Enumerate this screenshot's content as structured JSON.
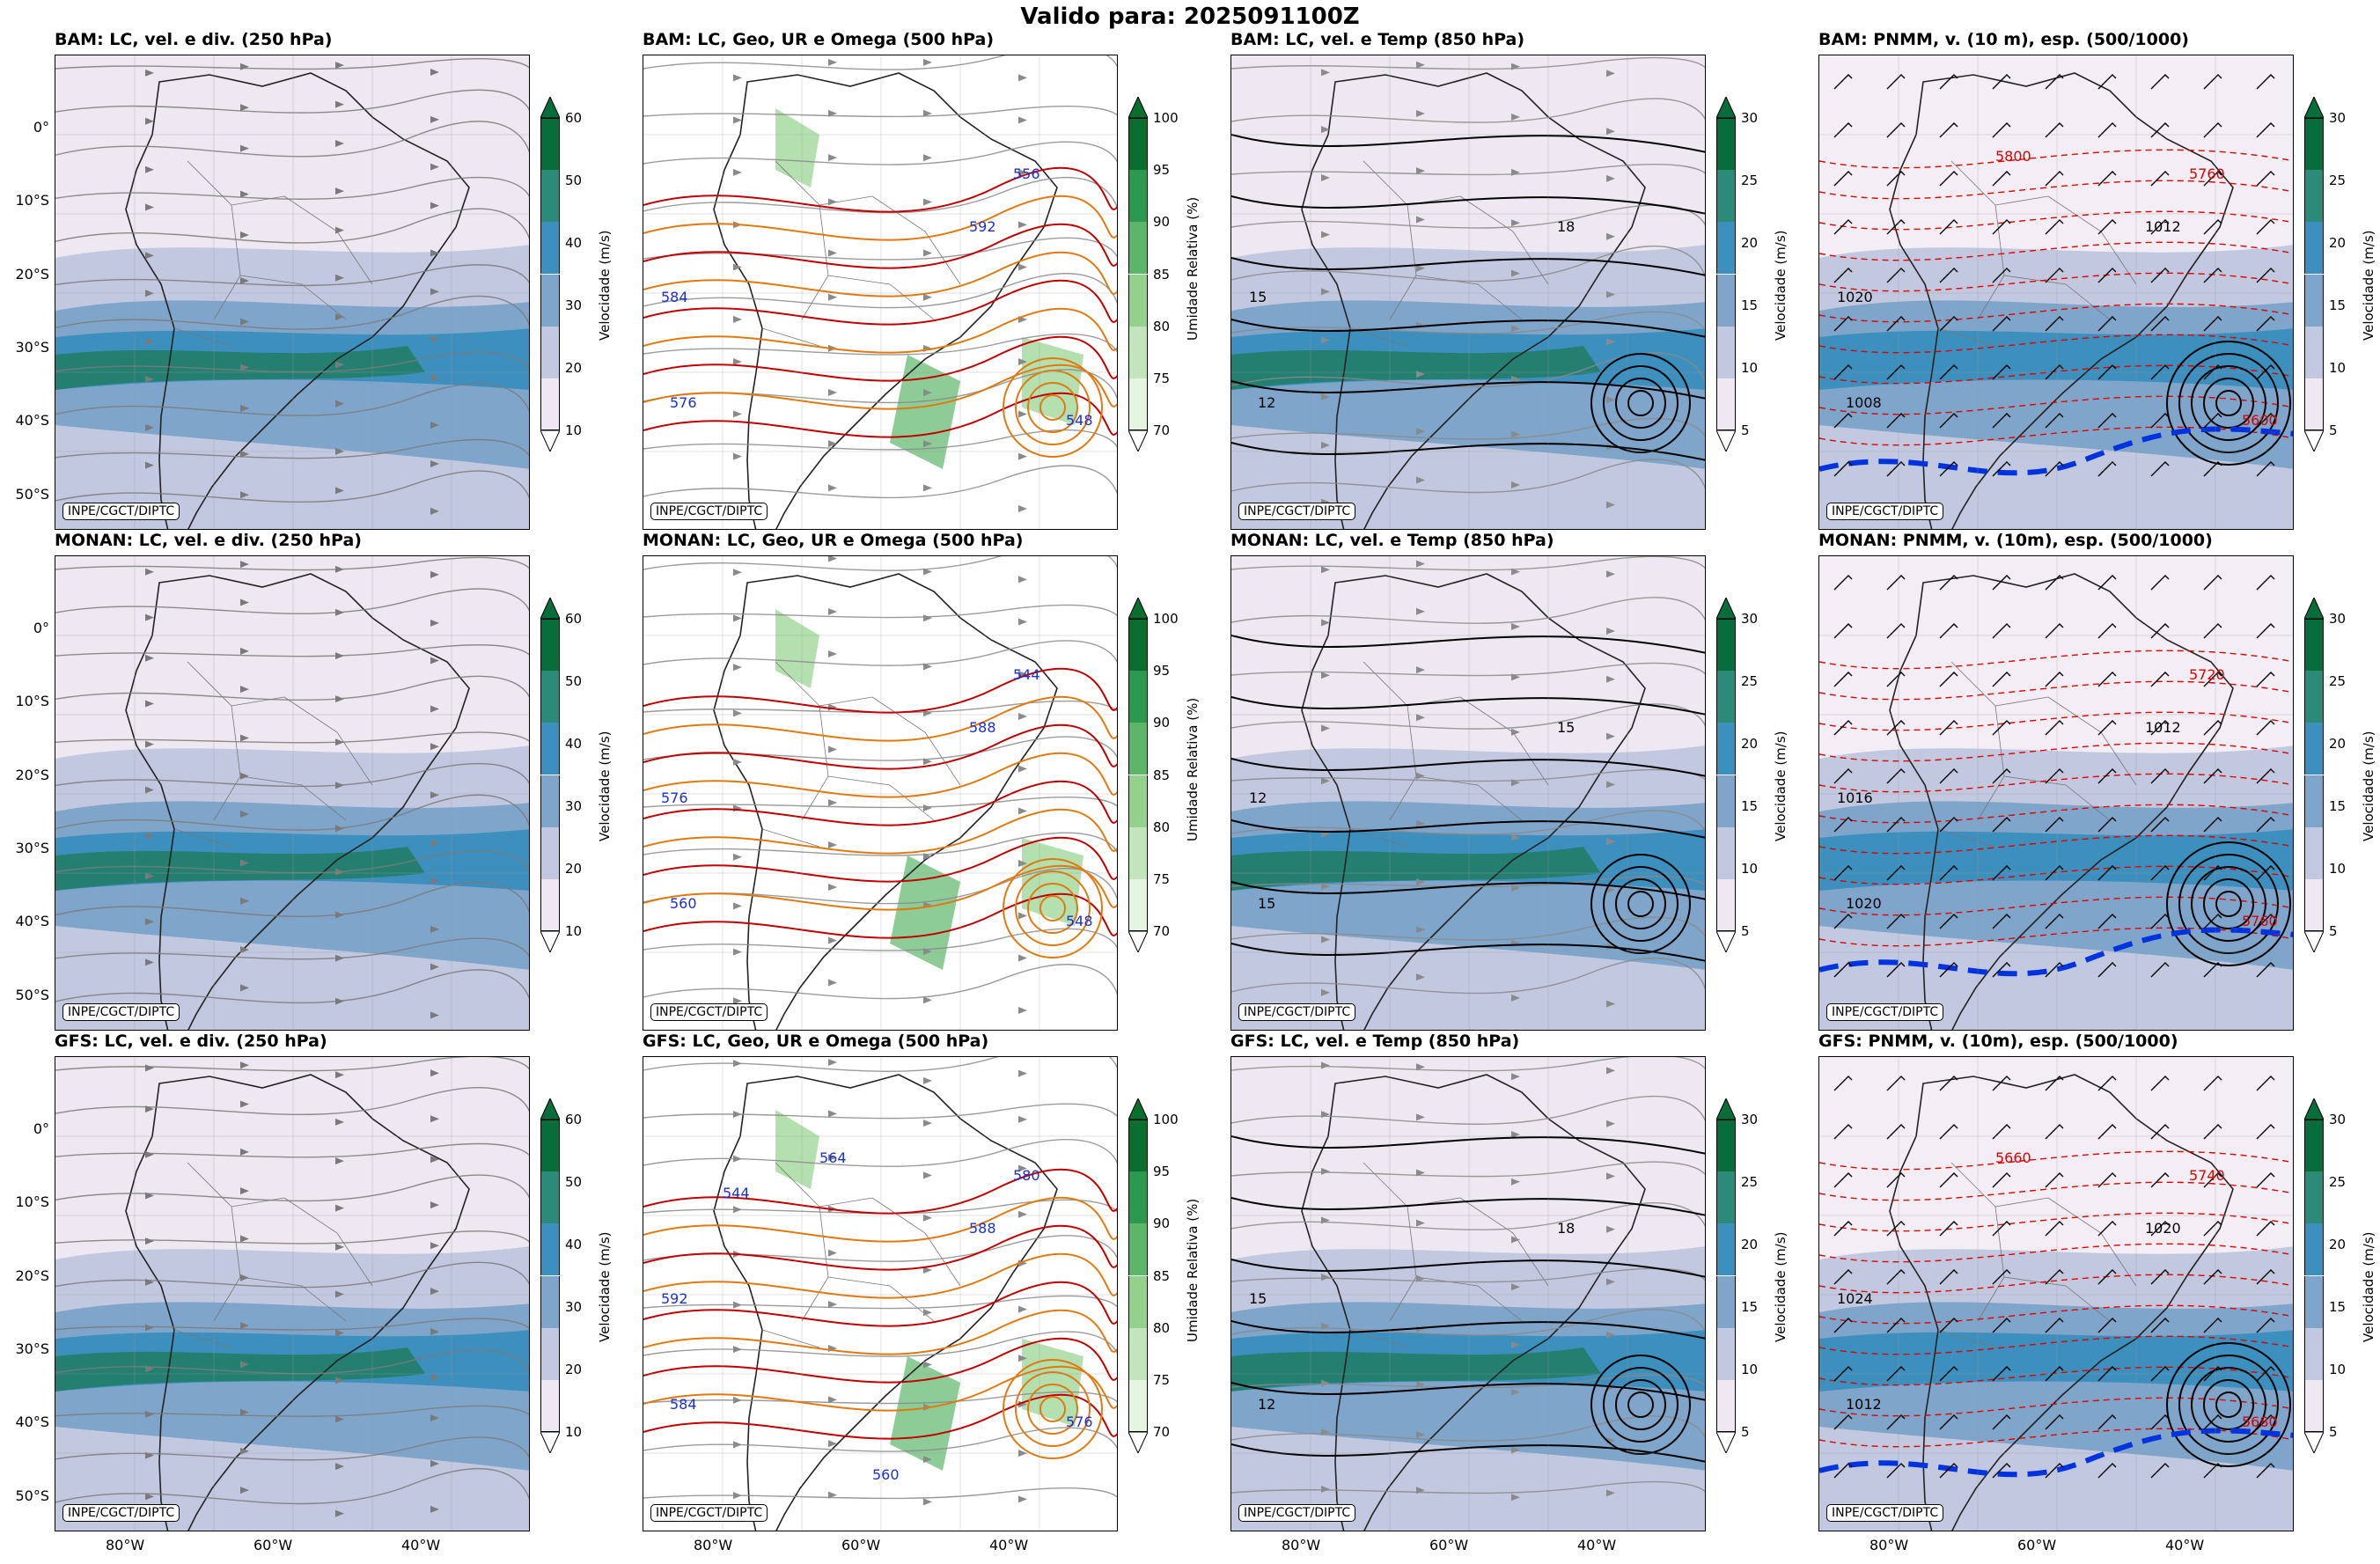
{
  "suptitle": "Valido para: 2025091100Z",
  "credit": "INPE/CGCT/DIPTC",
  "lat_ticks": [
    "0°",
    "10°S",
    "20°S",
    "30°S",
    "40°S",
    "50°S"
  ],
  "lon_ticks": [
    "80°W",
    "60°W",
    "40°W"
  ],
  "colorbars": {
    "vel250": {
      "label": "Velocidade (m/s)",
      "ticks": [
        "60",
        "50",
        "40",
        "30",
        "20",
        "10"
      ],
      "colors": [
        "#076d3a",
        "#2b8a78",
        "#3d8fbe",
        "#7fa5cb",
        "#c2c8e0",
        "#ede8f2"
      ]
    },
    "ur500": {
      "label": "Umidade Relativa (%)",
      "ticks": [
        "100",
        "95",
        "90",
        "85",
        "80",
        "75",
        "70"
      ],
      "colors": [
        "#0a6e2e",
        "#2c9a4e",
        "#5cb66a",
        "#94d18d",
        "#c2e5bc",
        "#e6f5e2"
      ]
    },
    "vel850": {
      "label": "Velocidade (m/s)",
      "ticks": [
        "30",
        "25",
        "20",
        "15",
        "10",
        "5"
      ],
      "colors": [
        "#076d3a",
        "#2b8a78",
        "#3d8fbe",
        "#7fa5cb",
        "#c2c8e0",
        "#ede8f2"
      ]
    },
    "pnmm": {
      "label": "Velocidade (m/s)",
      "ticks": [
        "30",
        "25",
        "20",
        "15",
        "10",
        "5"
      ],
      "colors": [
        "#076d3a",
        "#2b8a78",
        "#3d8fbe",
        "#7fa5cb",
        "#c2c8e0",
        "#ede8f2"
      ]
    }
  },
  "panels": [
    {
      "title": "BAM: LC, vel. e div. (250 hPa)",
      "kind": "vel250"
    },
    {
      "title": "BAM: LC, Geo, UR e Omega (500 hPa)",
      "kind": "ur500",
      "labels": [
        "592",
        "584",
        "576",
        "556",
        "548"
      ]
    },
    {
      "title": "BAM: LC, vel. e Temp (850 hPa)",
      "kind": "vel850",
      "labels": [
        "18",
        "15",
        "12"
      ]
    },
    {
      "title": "BAM: PNMM, v. (10 m), esp. (500/1000)",
      "kind": "pnmm",
      "labels": [
        "1012",
        "1020",
        "1008",
        "5760",
        "5600",
        "5800"
      ]
    },
    {
      "title": "MONAN: LC, vel. e div. (250 hPa)",
      "kind": "vel250"
    },
    {
      "title": "MONAN: LC, Geo, UR e Omega (500 hPa)",
      "kind": "ur500",
      "labels": [
        "588",
        "576",
        "560",
        "544",
        "548"
      ]
    },
    {
      "title": "MONAN: LC, vel. e Temp (850 hPa)",
      "kind": "vel850",
      "labels": [
        "15",
        "12",
        "15"
      ]
    },
    {
      "title": "MONAN: PNMM, v. (10m), esp. (500/1000)",
      "kind": "pnmm",
      "labels": [
        "1012",
        "1016",
        "1020",
        "5720",
        "5760"
      ]
    },
    {
      "title": "GFS: LC, vel. e div. (250 hPa)",
      "kind": "vel250"
    },
    {
      "title": "GFS: LC, Geo, UR e Omega (500 hPa)",
      "kind": "ur500",
      "labels": [
        "588",
        "592",
        "584",
        "580",
        "576",
        "564",
        "560",
        "544"
      ]
    },
    {
      "title": "GFS: LC, vel. e Temp (850 hPa)",
      "kind": "vel850",
      "labels": [
        "18",
        "15",
        "12"
      ]
    },
    {
      "title": "GFS: PNMM, v. (10m), esp. (500/1000)",
      "kind": "pnmm",
      "labels": [
        "1020",
        "1024",
        "1012",
        "5740",
        "5680",
        "5660"
      ]
    }
  ]
}
